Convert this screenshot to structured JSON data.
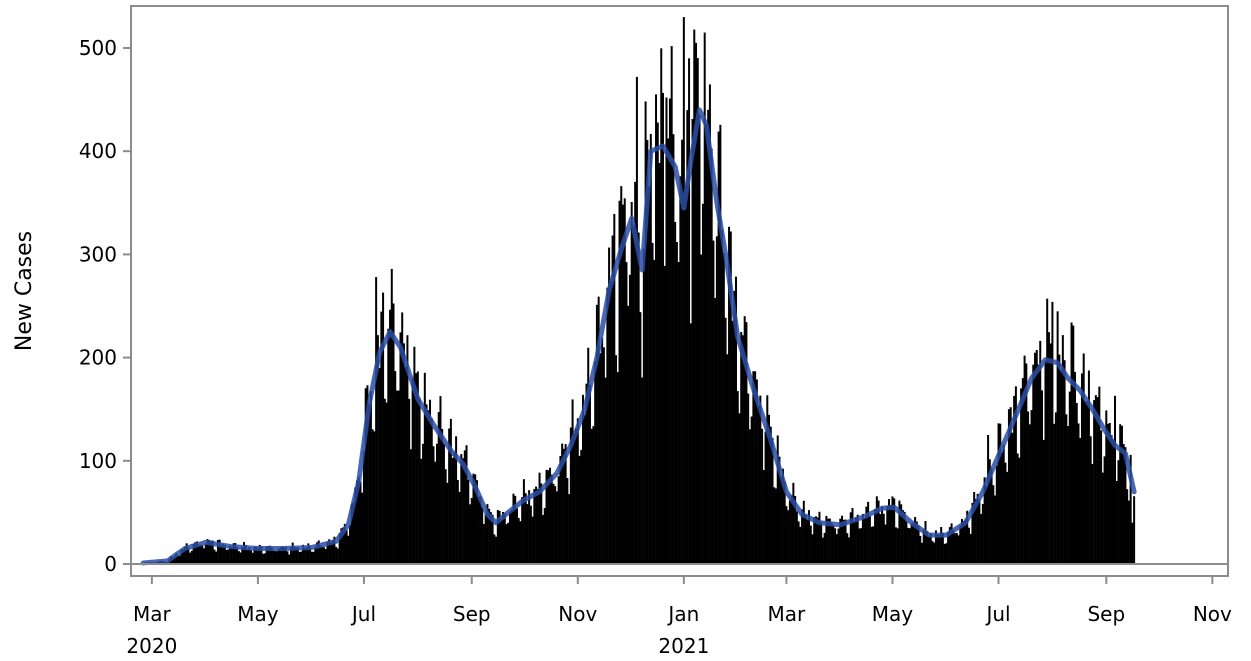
{
  "chart_data": {
    "type": "bar",
    "ylabel": "New Cases",
    "xlabel": "",
    "x_start": "2020-02-25",
    "x_end": "2021-09-17",
    "xlim": [
      "2020-02-18",
      "2021-11-10"
    ],
    "ylim": [
      0,
      540
    ],
    "y_ticks": [
      0,
      100,
      200,
      300,
      400,
      500
    ],
    "x_ticks": [
      {
        "date": "2020-03-01",
        "label": "Mar",
        "year": "2020"
      },
      {
        "date": "2020-05-01",
        "label": "May",
        "year": ""
      },
      {
        "date": "2020-07-01",
        "label": "Jul",
        "year": ""
      },
      {
        "date": "2020-09-01",
        "label": "Sep",
        "year": ""
      },
      {
        "date": "2020-11-01",
        "label": "Nov",
        "year": ""
      },
      {
        "date": "2021-01-01",
        "label": "Jan",
        "year": "2021"
      },
      {
        "date": "2021-03-01",
        "label": "Mar",
        "year": ""
      },
      {
        "date": "2021-05-01",
        "label": "May",
        "year": ""
      },
      {
        "date": "2021-07-01",
        "label": "Jul",
        "year": ""
      },
      {
        "date": "2021-09-01",
        "label": "Sep",
        "year": ""
      },
      {
        "date": "2021-11-01",
        "label": "Nov",
        "year": ""
      }
    ],
    "grid": false,
    "series": [
      {
        "kind": "bar",
        "color": "#000000"
      },
      {
        "kind": "line",
        "color": "#2b4fa6"
      }
    ],
    "trend_anchors": [
      [
        "2020-02-25",
        1
      ],
      [
        "2020-03-10",
        3
      ],
      [
        "2020-03-20",
        15
      ],
      [
        "2020-04-01",
        21
      ],
      [
        "2020-04-15",
        17
      ],
      [
        "2020-05-01",
        15
      ],
      [
        "2020-05-15",
        15
      ],
      [
        "2020-06-01",
        16
      ],
      [
        "2020-06-15",
        22
      ],
      [
        "2020-06-22",
        38
      ],
      [
        "2020-06-28",
        80
      ],
      [
        "2020-07-04",
        155
      ],
      [
        "2020-07-10",
        205
      ],
      [
        "2020-07-16",
        225
      ],
      [
        "2020-07-22",
        210
      ],
      [
        "2020-08-01",
        160
      ],
      [
        "2020-08-10",
        135
      ],
      [
        "2020-08-20",
        110
      ],
      [
        "2020-08-27",
        97
      ],
      [
        "2020-09-03",
        75
      ],
      [
        "2020-09-10",
        48
      ],
      [
        "2020-09-15",
        40
      ],
      [
        "2020-09-22",
        50
      ],
      [
        "2020-10-01",
        62
      ],
      [
        "2020-10-10",
        70
      ],
      [
        "2020-10-20",
        88
      ],
      [
        "2020-10-28",
        115
      ],
      [
        "2020-11-05",
        150
      ],
      [
        "2020-11-12",
        200
      ],
      [
        "2020-11-19",
        265
      ],
      [
        "2020-11-26",
        305
      ],
      [
        "2020-12-02",
        335
      ],
      [
        "2020-12-08",
        285
      ],
      [
        "2020-12-13",
        400
      ],
      [
        "2020-12-20",
        405
      ],
      [
        "2020-12-27",
        385
      ],
      [
        "2021-01-01",
        345
      ],
      [
        "2021-01-05",
        390
      ],
      [
        "2021-01-10",
        440
      ],
      [
        "2021-01-14",
        425
      ],
      [
        "2021-01-20",
        350
      ],
      [
        "2021-01-25",
        300
      ],
      [
        "2021-02-01",
        220
      ],
      [
        "2021-02-10",
        170
      ],
      [
        "2021-02-20",
        120
      ],
      [
        "2021-03-01",
        70
      ],
      [
        "2021-03-10",
        48
      ],
      [
        "2021-03-20",
        40
      ],
      [
        "2021-04-01",
        38
      ],
      [
        "2021-04-15",
        46
      ],
      [
        "2021-04-25",
        54
      ],
      [
        "2021-05-02",
        55
      ],
      [
        "2021-05-12",
        40
      ],
      [
        "2021-05-22",
        28
      ],
      [
        "2021-06-01",
        28
      ],
      [
        "2021-06-12",
        40
      ],
      [
        "2021-06-22",
        70
      ],
      [
        "2021-07-01",
        105
      ],
      [
        "2021-07-10",
        140
      ],
      [
        "2021-07-20",
        180
      ],
      [
        "2021-07-28",
        198
      ],
      [
        "2021-08-04",
        195
      ],
      [
        "2021-08-10",
        180
      ],
      [
        "2021-08-17",
        168
      ],
      [
        "2021-08-24",
        150
      ],
      [
        "2021-08-31",
        130
      ],
      [
        "2021-09-06",
        115
      ],
      [
        "2021-09-12",
        107
      ],
      [
        "2021-09-17",
        70
      ]
    ],
    "bar_peaks": [
      [
        "2020-07-08",
        278
      ],
      [
        "2020-07-12",
        263
      ],
      [
        "2020-12-05",
        472
      ],
      [
        "2020-12-16",
        455
      ],
      [
        "2020-12-22",
        452
      ],
      [
        "2021-01-01",
        530
      ],
      [
        "2021-01-04",
        490
      ],
      [
        "2021-01-08",
        505
      ],
      [
        "2021-06-25",
        125
      ],
      [
        "2021-08-01",
        254
      ],
      [
        "2021-08-12",
        234
      ],
      [
        "2021-09-06",
        163
      ],
      [
        "2021-09-16",
        40
      ]
    ]
  }
}
